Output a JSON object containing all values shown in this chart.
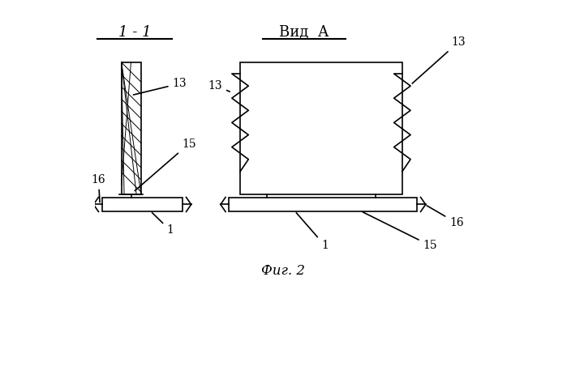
{
  "bg_color": "#ffffff",
  "line_color": "#000000",
  "title_left": "1 - 1",
  "title_right": "Вид  А",
  "caption": "Фиг. 2",
  "fig_width": 6.99,
  "fig_height": 4.84,
  "dpi": 100
}
